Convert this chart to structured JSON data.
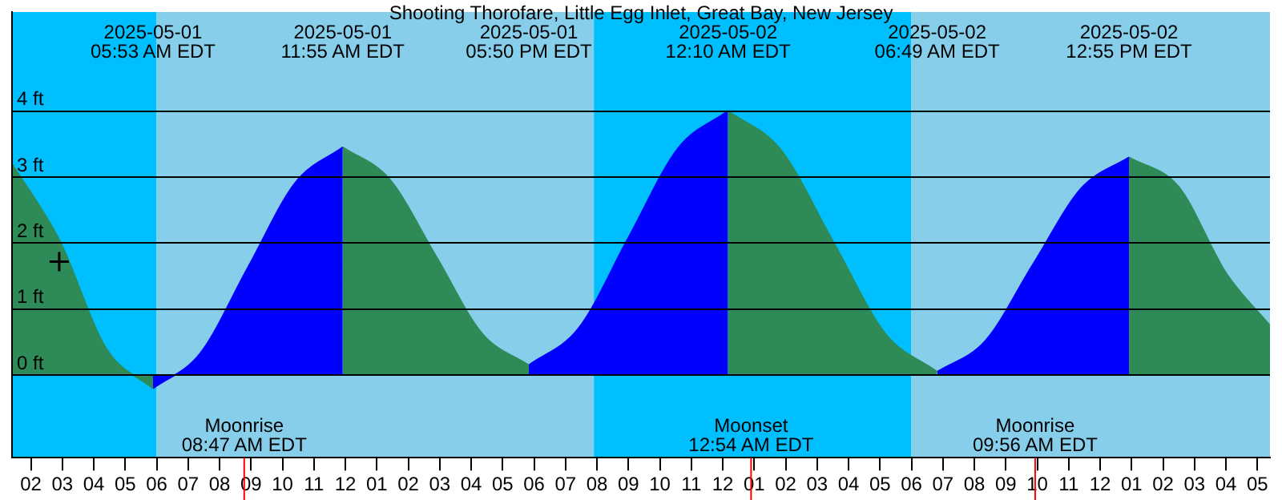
{
  "chart_data": {
    "type": "area",
    "title": "Shooting Thorofare, Little Egg Inlet, Great Bay, New Jersey",
    "xlim": [
      "2025-05-01T01:24",
      "2025-05-02T17:24"
    ],
    "ylim": [
      -1.25,
      5.5
    ],
    "xticks": [
      {
        "value": "2025-05-01T02:00",
        "label": "02"
      },
      {
        "value": "2025-05-01T03:00",
        "label": "03"
      },
      {
        "value": "2025-05-01T04:00",
        "label": "04"
      },
      {
        "value": "2025-05-01T05:00",
        "label": "05"
      },
      {
        "value": "2025-05-01T06:00",
        "label": "06"
      },
      {
        "value": "2025-05-01T07:00",
        "label": "07"
      },
      {
        "value": "2025-05-01T08:00",
        "label": "08"
      },
      {
        "value": "2025-05-01T09:00",
        "label": "09"
      },
      {
        "value": "2025-05-01T10:00",
        "label": "10"
      },
      {
        "value": "2025-05-01T11:00",
        "label": "11"
      },
      {
        "value": "2025-05-01T12:00",
        "label": "12"
      },
      {
        "value": "2025-05-01T13:00",
        "label": "01"
      },
      {
        "value": "2025-05-01T14:00",
        "label": "02"
      },
      {
        "value": "2025-05-01T15:00",
        "label": "03"
      },
      {
        "value": "2025-05-01T16:00",
        "label": "04"
      },
      {
        "value": "2025-05-01T17:00",
        "label": "05"
      },
      {
        "value": "2025-05-01T18:00",
        "label": "06"
      },
      {
        "value": "2025-05-01T19:00",
        "label": "07"
      },
      {
        "value": "2025-05-01T20:00",
        "label": "08"
      },
      {
        "value": "2025-05-01T21:00",
        "label": "09"
      },
      {
        "value": "2025-05-01T22:00",
        "label": "10"
      },
      {
        "value": "2025-05-01T23:00",
        "label": "11"
      },
      {
        "value": "2025-05-02T00:00",
        "label": "12"
      },
      {
        "value": "2025-05-02T01:00",
        "label": "01"
      },
      {
        "value": "2025-05-02T02:00",
        "label": "02"
      },
      {
        "value": "2025-05-02T03:00",
        "label": "03"
      },
      {
        "value": "2025-05-02T04:00",
        "label": "04"
      },
      {
        "value": "2025-05-02T05:00",
        "label": "05"
      },
      {
        "value": "2025-05-02T06:00",
        "label": "06"
      },
      {
        "value": "2025-05-02T07:00",
        "label": "07"
      },
      {
        "value": "2025-05-02T08:00",
        "label": "08"
      },
      {
        "value": "2025-05-02T09:00",
        "label": "09"
      },
      {
        "value": "2025-05-02T10:00",
        "label": "10"
      },
      {
        "value": "2025-05-02T11:00",
        "label": "11"
      },
      {
        "value": "2025-05-02T12:00",
        "label": "12"
      },
      {
        "value": "2025-05-02T13:00",
        "label": "01"
      },
      {
        "value": "2025-05-02T14:00",
        "label": "02"
      },
      {
        "value": "2025-05-02T15:00",
        "label": "03"
      },
      {
        "value": "2025-05-02T16:00",
        "label": "04"
      },
      {
        "value": "2025-05-02T17:00",
        "label": "05"
      }
    ],
    "yticks": [
      {
        "value": 0,
        "label": "0 ft"
      },
      {
        "value": 1,
        "label": "1 ft"
      },
      {
        "value": 2,
        "label": "2 ft"
      },
      {
        "value": 3,
        "label": "3 ft"
      },
      {
        "value": 4,
        "label": "4 ft"
      }
    ],
    "grid": "y",
    "legend": false,
    "series": [
      {
        "color": "#2e8b57",
        "x": [
          "2025-05-01T01:24",
          "2025-05-01T02:54",
          "2025-05-01T04:24",
          "2025-05-01T05:53"
        ],
        "values": [
          3.2,
          2.05,
          0.4,
          -0.2
        ]
      },
      {
        "color": "#0000ff",
        "x": [
          "2025-05-01T05:53",
          "2025-05-01T07:23",
          "2025-05-01T08:54",
          "2025-05-01T10:25",
          "2025-05-01T11:55"
        ],
        "values": [
          -0.2,
          0.33,
          1.63,
          2.92,
          3.45
        ]
      },
      {
        "color": "#2e8b57",
        "x": [
          "2025-05-01T11:55",
          "2025-05-01T13:24",
          "2025-05-01T14:53",
          "2025-05-01T16:21",
          "2025-05-01T17:50"
        ],
        "values": [
          3.45,
          2.97,
          1.8,
          0.63,
          0.15
        ]
      },
      {
        "color": "#0000ff",
        "x": [
          "2025-05-01T17:50",
          "2025-05-01T19:25",
          "2025-05-01T21:00",
          "2025-05-01T22:35",
          "2025-05-02T00:10"
        ],
        "values": [
          0.15,
          0.71,
          2.08,
          3.44,
          4.0
        ]
      },
      {
        "color": "#2e8b57",
        "x": [
          "2025-05-02T00:10",
          "2025-05-02T01:50",
          "2025-05-02T03:30",
          "2025-05-02T05:10",
          "2025-05-02T06:49"
        ],
        "values": [
          4.0,
          3.42,
          2.03,
          0.63,
          0.05
        ]
      },
      {
        "color": "#0000ff",
        "x": [
          "2025-05-02T06:49",
          "2025-05-02T08:21",
          "2025-05-02T09:52",
          "2025-05-02T11:24",
          "2025-05-02T12:55"
        ],
        "values": [
          0.05,
          0.52,
          1.68,
          2.83,
          3.3
        ]
      },
      {
        "color": "#2e8b57",
        "x": [
          "2025-05-02T12:55",
          "2025-05-02T14:30",
          "2025-05-02T16:00",
          "2025-05-02T17:24"
        ],
        "values": [
          3.3,
          2.85,
          1.55,
          0.75
        ]
      },
      {
        "type": "scatter",
        "color": "#000000",
        "marker": "cross",
        "x": [
          "2025-05-01T02:54"
        ],
        "values": [
          1.72
        ]
      }
    ],
    "bands": [
      {
        "axis": "x",
        "from": "2025-05-01T01:24",
        "to": "2025-05-01T06:00",
        "color": "#00bfff"
      },
      {
        "axis": "x",
        "from": "2025-05-01T06:00",
        "to": "2025-05-01T19:54",
        "color": "#87ceeb"
      },
      {
        "axis": "x",
        "from": "2025-05-01T19:54",
        "to": "2025-05-02T06:00",
        "color": "#00bfff"
      },
      {
        "axis": "x",
        "from": "2025-05-02T06:00",
        "to": "2025-05-02T17:24",
        "color": "#87ceeb"
      }
    ],
    "ref_lines": [
      {
        "axis": "x",
        "value": "2025-05-01T08:47",
        "label": "Moonrise\n08:47 AM EDT",
        "color": "#ff0000"
      },
      {
        "axis": "x",
        "value": "2025-05-02T00:54",
        "label": "Moonset\n12:54 AM EDT",
        "color": "#ff0000"
      },
      {
        "axis": "x",
        "value": "2025-05-02T09:56",
        "label": "Moonrise\n09:56 AM EDT",
        "color": "#ff0000"
      }
    ],
    "annotations": [
      "2025-05-01\n05:53 AM EDT",
      "2025-05-01\n11:55 AM EDT",
      "2025-05-01\n05:50 PM EDT",
      "2025-05-02\n12:10 AM EDT",
      "2025-05-02\n06:49 AM EDT",
      "2025-05-02\n12:55 PM EDT"
    ]
  }
}
